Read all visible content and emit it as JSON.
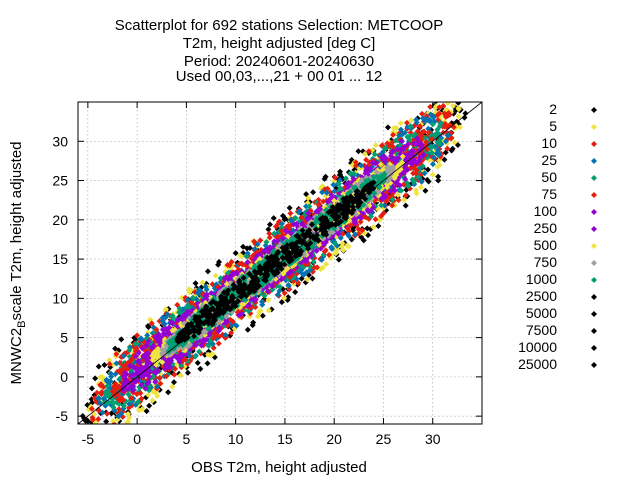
{
  "chart_data": {
    "type": "scatter",
    "title_lines": [
      "Scatterplot for  692 stations Selection: METCOOP",
      "T2m, height adjusted [deg C]",
      "Period: 20240601-20240630",
      "Used 00,03,...,21 + 00 01 ... 12"
    ],
    "xlabel": "OBS T2m, height adjusted",
    "ylabel_main": "MNWC2",
    "ylabel_sub": "B",
    "ylabel_rest": "scale T2m, height adjusted",
    "xlim": [
      -6,
      35
    ],
    "ylim": [
      -6,
      35
    ],
    "x_ticks": [
      -5,
      0,
      5,
      10,
      15,
      20,
      25,
      30
    ],
    "y_ticks": [
      -5,
      0,
      5,
      10,
      15,
      20,
      25,
      30
    ],
    "grid": true,
    "reference_line": "y = x",
    "legend_position": "right",
    "density_levels": [
      {
        "label": "2",
        "color": "#000000"
      },
      {
        "label": "5",
        "color": "#f0e442"
      },
      {
        "label": "10",
        "color": "#e51e10"
      },
      {
        "label": "25",
        "color": "#0072b2"
      },
      {
        "label": "50",
        "color": "#009e73"
      },
      {
        "label": "75",
        "color": "#e51e10"
      },
      {
        "label": "100",
        "color": "#9400d3"
      },
      {
        "label": "250",
        "color": "#9400d3"
      },
      {
        "label": "500",
        "color": "#f0e442"
      },
      {
        "label": "750",
        "color": "#a0a0a0"
      },
      {
        "label": "1000",
        "color": "#009e73"
      },
      {
        "label": "2500",
        "color": "#000000"
      },
      {
        "label": "5000",
        "color": "#000000"
      },
      {
        "label": "7500",
        "color": "#000000"
      },
      {
        "label": "10000",
        "color": "#000000"
      },
      {
        "label": "25000",
        "color": "#000000"
      }
    ],
    "density_bands": [
      {
        "level": "2",
        "color": "#000000",
        "slope": 0.99,
        "intercept": 0.6,
        "spread": 6.0,
        "x_range": [
          -5.6,
          33.5
        ]
      },
      {
        "level": "5",
        "color": "#f0e442",
        "slope": 0.99,
        "intercept": 0.6,
        "spread": 5.4,
        "x_range": [
          -5.0,
          32.8
        ]
      },
      {
        "level": "10",
        "color": "#e51e10",
        "slope": 0.99,
        "intercept": 0.6,
        "spread": 4.9,
        "x_range": [
          -4.6,
          32.3
        ]
      },
      {
        "level": "25",
        "color": "#0072b2",
        "slope": 0.99,
        "intercept": 0.6,
        "spread": 4.4,
        "x_range": [
          -4.0,
          31.6
        ]
      },
      {
        "level": "50",
        "color": "#009e73",
        "slope": 0.99,
        "intercept": 0.6,
        "spread": 3.9,
        "x_range": [
          -3.3,
          30.8
        ]
      },
      {
        "level": "75",
        "color": "#e51e10",
        "slope": 0.99,
        "intercept": 0.6,
        "spread": 3.5,
        "x_range": [
          -2.5,
          30.0
        ]
      },
      {
        "level": "100",
        "color": "#9400d3",
        "slope": 0.99,
        "intercept": 0.6,
        "spread": 3.1,
        "x_range": [
          -1.5,
          29.2
        ]
      },
      {
        "level": "250",
        "color": "#9400d3",
        "slope": 0.99,
        "intercept": 0.6,
        "spread": 2.7,
        "x_range": [
          0.0,
          28.2
        ]
      },
      {
        "level": "500",
        "color": "#f0e442",
        "slope": 0.99,
        "intercept": 0.6,
        "spread": 2.2,
        "x_range": [
          1.5,
          27.0
        ]
      },
      {
        "level": "750",
        "color": "#a0a0a0",
        "slope": 0.99,
        "intercept": 0.6,
        "spread": 1.9,
        "x_range": [
          2.5,
          26.0
        ]
      },
      {
        "level": "1000",
        "color": "#009e73",
        "slope": 0.99,
        "intercept": 0.6,
        "spread": 1.7,
        "x_range": [
          3.2,
          25.2
        ]
      },
      {
        "level": "2500",
        "color": "#000000",
        "slope": 0.99,
        "intercept": 0.6,
        "spread": 1.5,
        "x_range": [
          4.0,
          24.0
        ]
      }
    ]
  }
}
